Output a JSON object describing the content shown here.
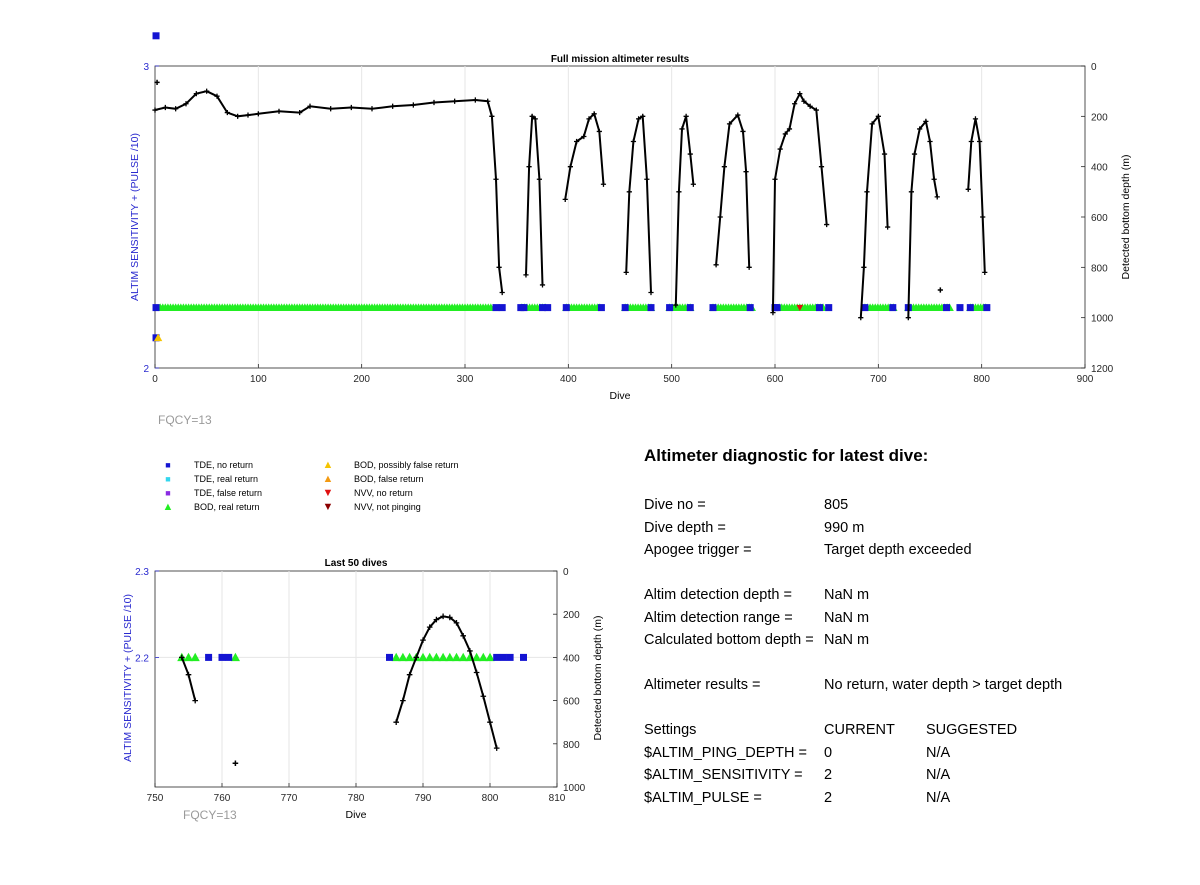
{
  "charts": {
    "full": {
      "title": "Full mission altimeter results",
      "xlabel": "Dive",
      "ylabel_left": "ALTIM SENSITIVITY + (PULSE /10)",
      "ylabel_right": "Detected bottom depth (m)",
      "fqcy": "FQCY=13"
    },
    "last50": {
      "title": "Last 50 dives",
      "xlabel": "Dive",
      "ylabel_left": "ALTIM SENSITIVITY + (PULSE /10)",
      "ylabel_right": "Detected bottom depth (m)",
      "fqcy": "FQCY=13"
    }
  },
  "legend": [
    {
      "label": "TDE, no return",
      "marker": "square",
      "color": "#1414d2"
    },
    {
      "label": "TDE, real return",
      "marker": "square",
      "color": "#33d6ee"
    },
    {
      "label": "TDE, false return",
      "marker": "square",
      "color": "#8a2be2"
    },
    {
      "label": "BOD, real return",
      "marker": "triangle-up",
      "color": "#22ee22"
    },
    {
      "label": "BOD, possibly false return",
      "marker": "triangle-up",
      "color": "#f5c400"
    },
    {
      "label": "BOD, false return",
      "marker": "triangle-up",
      "color": "#f39a12"
    },
    {
      "label": "NVV, no return",
      "marker": "triangle-down",
      "color": "#e01010"
    },
    {
      "label": "NVV, not pinging",
      "marker": "triangle-down",
      "color": "#8b0000"
    }
  ],
  "diagnostic": {
    "title": "Altimeter diagnostic for latest dive:",
    "dive_no_label": "Dive no =",
    "dive_no": "805",
    "dive_depth_label": "Dive depth =",
    "dive_depth": "990 m",
    "apogee_label": "Apogee trigger =",
    "apogee": "Target depth exceeded",
    "altim_depth_label": "Altim detection depth =",
    "altim_depth": "NaN m",
    "altim_range_label": "Altim detection range =",
    "altim_range": "NaN m",
    "calc_depth_label": "Calculated bottom depth =",
    "calc_depth": "NaN m",
    "results_label": "Altimeter results =",
    "results": "No return, water depth > target depth",
    "settings_label": "Settings",
    "current_label": "CURRENT",
    "suggested_label": "SUGGESTED",
    "settings": [
      {
        "name": "$ALTIM_PING_DEPTH =",
        "current": "0",
        "suggested": "N/A"
      },
      {
        "name": "$ALTIM_SENSITIVITY =",
        "current": "2",
        "suggested": "N/A"
      },
      {
        "name": "$ALTIM_PULSE =",
        "current": "2",
        "suggested": "N/A"
      }
    ]
  },
  "chart_data": [
    {
      "type": "scatter",
      "title": "Full mission altimeter results",
      "xlabel": "Dive",
      "ylabel": "ALTIM SENSITIVITY + (PULSE /10)",
      "y2label": "Detected bottom depth (m)",
      "xlim": [
        0,
        900
      ],
      "ylim": [
        2,
        3
      ],
      "y2lim": [
        0,
        1200
      ],
      "y2_reversed": true,
      "xticks": [
        0,
        100,
        200,
        300,
        400,
        500,
        600,
        700,
        800,
        900
      ],
      "yticks": [
        2,
        3
      ],
      "y2ticks": [
        0,
        200,
        400,
        600,
        800,
        1000,
        1200
      ],
      "grid": true,
      "bottom_depth_series": {
        "name": "Detected bottom depth",
        "segments": [
          [
            [
              0,
              175
            ],
            [
              10,
              165
            ],
            [
              20,
              170
            ],
            [
              30,
              150
            ],
            [
              40,
              110
            ],
            [
              50,
              100
            ],
            [
              60,
              120
            ],
            [
              70,
              185
            ],
            [
              80,
              200
            ],
            [
              90,
              195
            ],
            [
              100,
              190
            ],
            [
              120,
              180
            ],
            [
              140,
              185
            ],
            [
              150,
              160
            ],
            [
              170,
              170
            ],
            [
              190,
              165
            ],
            [
              210,
              170
            ],
            [
              230,
              160
            ],
            [
              250,
              155
            ],
            [
              270,
              145
            ],
            [
              290,
              140
            ],
            [
              310,
              135
            ],
            [
              322,
              140
            ],
            [
              326,
              200
            ],
            [
              330,
              450
            ],
            [
              333,
              800
            ],
            [
              336,
              900
            ]
          ],
          [
            [
              359,
              830
            ],
            [
              362,
              400
            ],
            [
              365,
              200
            ],
            [
              368,
              210
            ],
            [
              372,
              450
            ],
            [
              375,
              870
            ]
          ],
          [
            [
              397,
              530
            ],
            [
              402,
              400
            ],
            [
              408,
              300
            ],
            [
              415,
              280
            ],
            [
              420,
              210
            ],
            [
              425,
              190
            ],
            [
              430,
              260
            ],
            [
              434,
              470
            ]
          ],
          [
            [
              456,
              820
            ],
            [
              459,
              500
            ],
            [
              463,
              300
            ],
            [
              468,
              210
            ],
            [
              472,
              200
            ],
            [
              476,
              450
            ],
            [
              480,
              900
            ]
          ],
          [
            [
              504,
              950
            ],
            [
              507,
              500
            ],
            [
              510,
              250
            ],
            [
              514,
              200
            ],
            [
              518,
              350
            ],
            [
              521,
              470
            ]
          ],
          [
            [
              543,
              790
            ],
            [
              547,
              600
            ],
            [
              551,
              400
            ],
            [
              556,
              230
            ],
            [
              564,
              195
            ],
            [
              569,
              260
            ],
            [
              572,
              420
            ],
            [
              575,
              800
            ]
          ],
          [
            [
              598,
              980
            ],
            [
              600,
              450
            ],
            [
              605,
              330
            ],
            [
              610,
              270
            ],
            [
              614,
              250
            ],
            [
              619,
              150
            ],
            [
              624,
              110
            ],
            [
              628,
              140
            ],
            [
              634,
              160
            ],
            [
              640,
              175
            ],
            [
              645,
              400
            ],
            [
              650,
              630
            ]
          ],
          [
            [
              683,
              1000
            ],
            [
              686,
              800
            ],
            [
              689,
              500
            ],
            [
              694,
              230
            ],
            [
              700,
              200
            ],
            [
              706,
              350
            ],
            [
              709,
              640
            ]
          ],
          [
            [
              729,
              1000
            ],
            [
              732,
              500
            ],
            [
              735,
              350
            ],
            [
              740,
              250
            ],
            [
              746,
              220
            ],
            [
              750,
              300
            ],
            [
              754,
              450
            ],
            [
              757,
              520
            ]
          ],
          [
            [
              787,
              490
            ],
            [
              790,
              300
            ],
            [
              794,
              210
            ],
            [
              798,
              300
            ],
            [
              801,
              600
            ],
            [
              803,
              820
            ]
          ]
        ],
        "isolated_points": [
          [
            2,
            65
          ],
          [
            760,
            890
          ]
        ]
      },
      "altim_markers": {
        "bod_real_ranges": [
          [
            5,
            326
          ],
          [
            355,
            378
          ],
          [
            398,
            432
          ],
          [
            455,
            482
          ],
          [
            498,
            520
          ],
          [
            540,
            578
          ],
          [
            604,
            648
          ],
          [
            687,
            716
          ],
          [
            729,
            770
          ],
          [
            789,
            805
          ]
        ],
        "tde_no_return_dives": [
          1,
          330,
          336,
          354,
          357,
          375,
          380,
          398,
          432,
          455,
          480,
          498,
          518,
          540,
          576,
          600,
          602,
          643,
          652,
          687,
          714,
          729,
          766,
          779,
          789,
          805
        ],
        "sensitivity_value": 2.2,
        "initial_points": [
          {
            "dive": 1,
            "value": 3.1,
            "marker": "TDE, no return"
          },
          {
            "dive": 1,
            "value": 2.1,
            "marker": "TDE, no return"
          },
          {
            "dive": 3,
            "value": 2.1,
            "marker": "BOD, possibly false return"
          },
          {
            "dive": 624,
            "value": 2.2,
            "marker": "NVV, no return"
          }
        ]
      }
    },
    {
      "type": "scatter",
      "title": "Last 50 dives",
      "xlabel": "Dive",
      "ylabel": "ALTIM SENSITIVITY + (PULSE /10)",
      "y2label": "Detected bottom depth (m)",
      "xlim": [
        750,
        810
      ],
      "ylim": [
        2.05,
        2.3
      ],
      "y2lim": [
        0,
        1000
      ],
      "y2_reversed": true,
      "xticks": [
        750,
        760,
        770,
        780,
        790,
        800,
        810
      ],
      "yticks": [
        2.2,
        2.3
      ],
      "y2ticks": [
        0,
        200,
        400,
        600,
        800,
        1000
      ],
      "grid": true,
      "bottom_depth_series": {
        "name": "Detected bottom depth",
        "segments": [
          [
            [
              754,
              400
            ],
            [
              755,
              480
            ],
            [
              756,
              600
            ]
          ],
          [
            [
              786,
              700
            ],
            [
              787,
              600
            ],
            [
              788,
              480
            ],
            [
              789,
              400
            ],
            [
              790,
              320
            ],
            [
              791,
              260
            ],
            [
              792,
              225
            ],
            [
              793,
              210
            ],
            [
              794,
              215
            ],
            [
              795,
              240
            ],
            [
              796,
              300
            ],
            [
              797,
              370
            ],
            [
              798,
              470
            ],
            [
              799,
              580
            ],
            [
              800,
              700
            ],
            [
              801,
              820
            ]
          ]
        ],
        "isolated_points": [
          [
            762,
            890
          ]
        ]
      },
      "altim_markers": {
        "bod_real_dives": [
          754,
          755,
          756,
          762,
          786,
          787,
          788,
          789,
          790,
          791,
          792,
          793,
          794,
          795,
          796,
          797,
          798,
          799,
          800
        ],
        "tde_no_return_dives": [
          758,
          760,
          761,
          785,
          801,
          802,
          803,
          805
        ],
        "sensitivity_value": 2.2
      }
    }
  ]
}
